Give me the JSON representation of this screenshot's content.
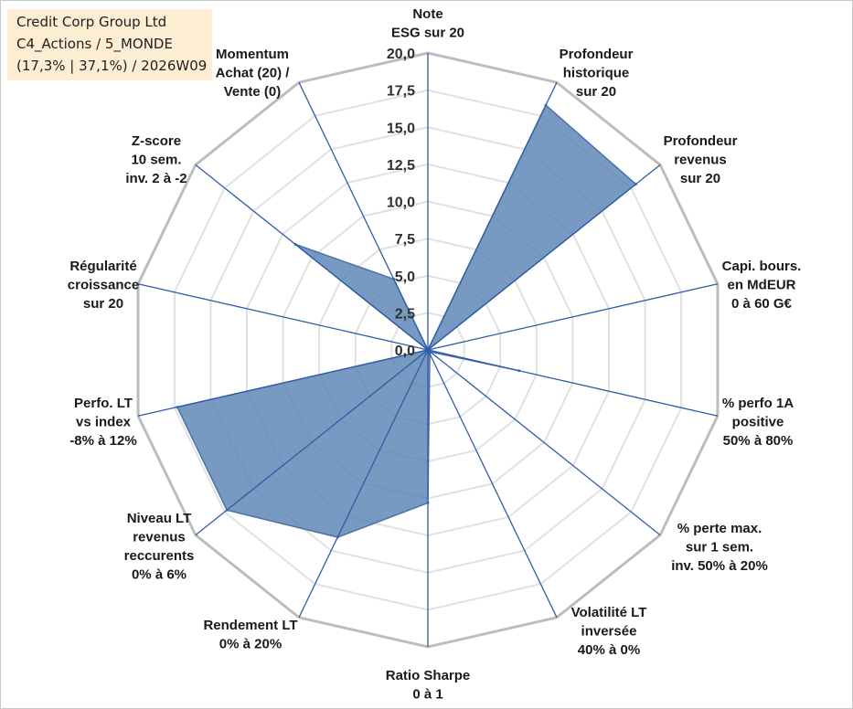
{
  "header": {
    "company": "Credit Corp Group Ltd",
    "category": "C4_Actions / 5_MONDE",
    "stats": "(17,3% | 37,1%) / 2026W09"
  },
  "chart_data": {
    "type": "radar",
    "rmax": 20,
    "ticks": [
      "0,0",
      "2,5",
      "5,0",
      "7,5",
      "10,0",
      "12,5",
      "15,0",
      "17,5",
      "20,0"
    ],
    "axes": [
      {
        "lines": [
          "Note",
          "ESG sur 20"
        ]
      },
      {
        "lines": [
          "Profondeur",
          "historique",
          "sur 20"
        ]
      },
      {
        "lines": [
          "Profondeur",
          "revenus",
          "sur 20"
        ]
      },
      {
        "lines": [
          "Capi. bours.",
          "en MdEUR",
          "0 à 60 G€"
        ]
      },
      {
        "lines": [
          "% perfo 1A",
          "positive",
          "50% à 80%"
        ]
      },
      {
        "lines": [
          "% perte max.",
          "sur 1 sem.",
          "inv. 50% à 20%"
        ]
      },
      {
        "lines": [
          "Volatilité LT",
          "inversée",
          "40% à 0%"
        ]
      },
      {
        "lines": [
          "Ratio Sharpe",
          "0 à 1"
        ]
      },
      {
        "lines": [
          "Rendement LT",
          "0% à 20%"
        ]
      },
      {
        "lines": [
          "Niveau LT",
          "revenus",
          "reccurents",
          "0% à 6%"
        ]
      },
      {
        "lines": [
          "Perfo. LT",
          "vs index",
          "-8% à 12%"
        ]
      },
      {
        "lines": [
          "Régularité",
          "croissance",
          "sur 20"
        ]
      },
      {
        "lines": [
          "Z-score",
          "10 sem.",
          "inv. 2 à -2"
        ]
      },
      {
        "lines": [
          "Momentum",
          "Achat (20) /",
          "Vente (0)"
        ]
      }
    ],
    "series": [
      {
        "name": "Credit Corp Group Ltd",
        "values": [
          0,
          18.3,
          17.9,
          0,
          6.3,
          0.2,
          0.3,
          10.3,
          14.0,
          17.3,
          17.3,
          0,
          11.4,
          5.3
        ]
      }
    ],
    "colors": {
      "fill": "#5a82b5",
      "stroke": "#4a72a8",
      "spoke": "#2e5ea8",
      "grid_outer": "#bdbdbd",
      "grid": "#e1e1e1"
    }
  }
}
